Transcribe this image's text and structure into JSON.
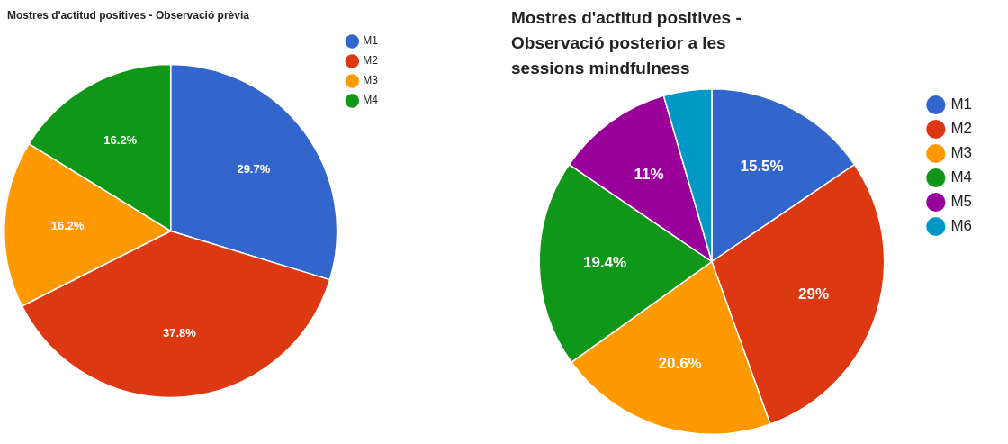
{
  "chart_data": [
    {
      "type": "pie",
      "title": "Mostres d'actitud positives - Observació prèvia",
      "categories": [
        "M1",
        "M2",
        "M3",
        "M4"
      ],
      "values": [
        29.7,
        37.8,
        16.2,
        16.2
      ],
      "colors": [
        "#3366cc",
        "#dc3912",
        "#ff9900",
        "#109618"
      ],
      "value_labels": [
        "29.7%",
        "37.8%",
        "16.2%",
        "16.2%"
      ],
      "legend": "right"
    },
    {
      "type": "pie",
      "title": "Mostres d'actitud positives - Observació posterior a les sessions mindfulness",
      "categories": [
        "M1",
        "M2",
        "M3",
        "M4",
        "M5",
        "M6"
      ],
      "values": [
        15.5,
        29,
        20.6,
        19.4,
        11,
        4.5
      ],
      "colors": [
        "#3366cc",
        "#dc3912",
        "#ff9900",
        "#109618",
        "#990099",
        "#0099c6"
      ],
      "value_labels": [
        "15.5%",
        "29%",
        "20.6%",
        "19.4%",
        "11%",
        null
      ],
      "legend": "right"
    }
  ]
}
